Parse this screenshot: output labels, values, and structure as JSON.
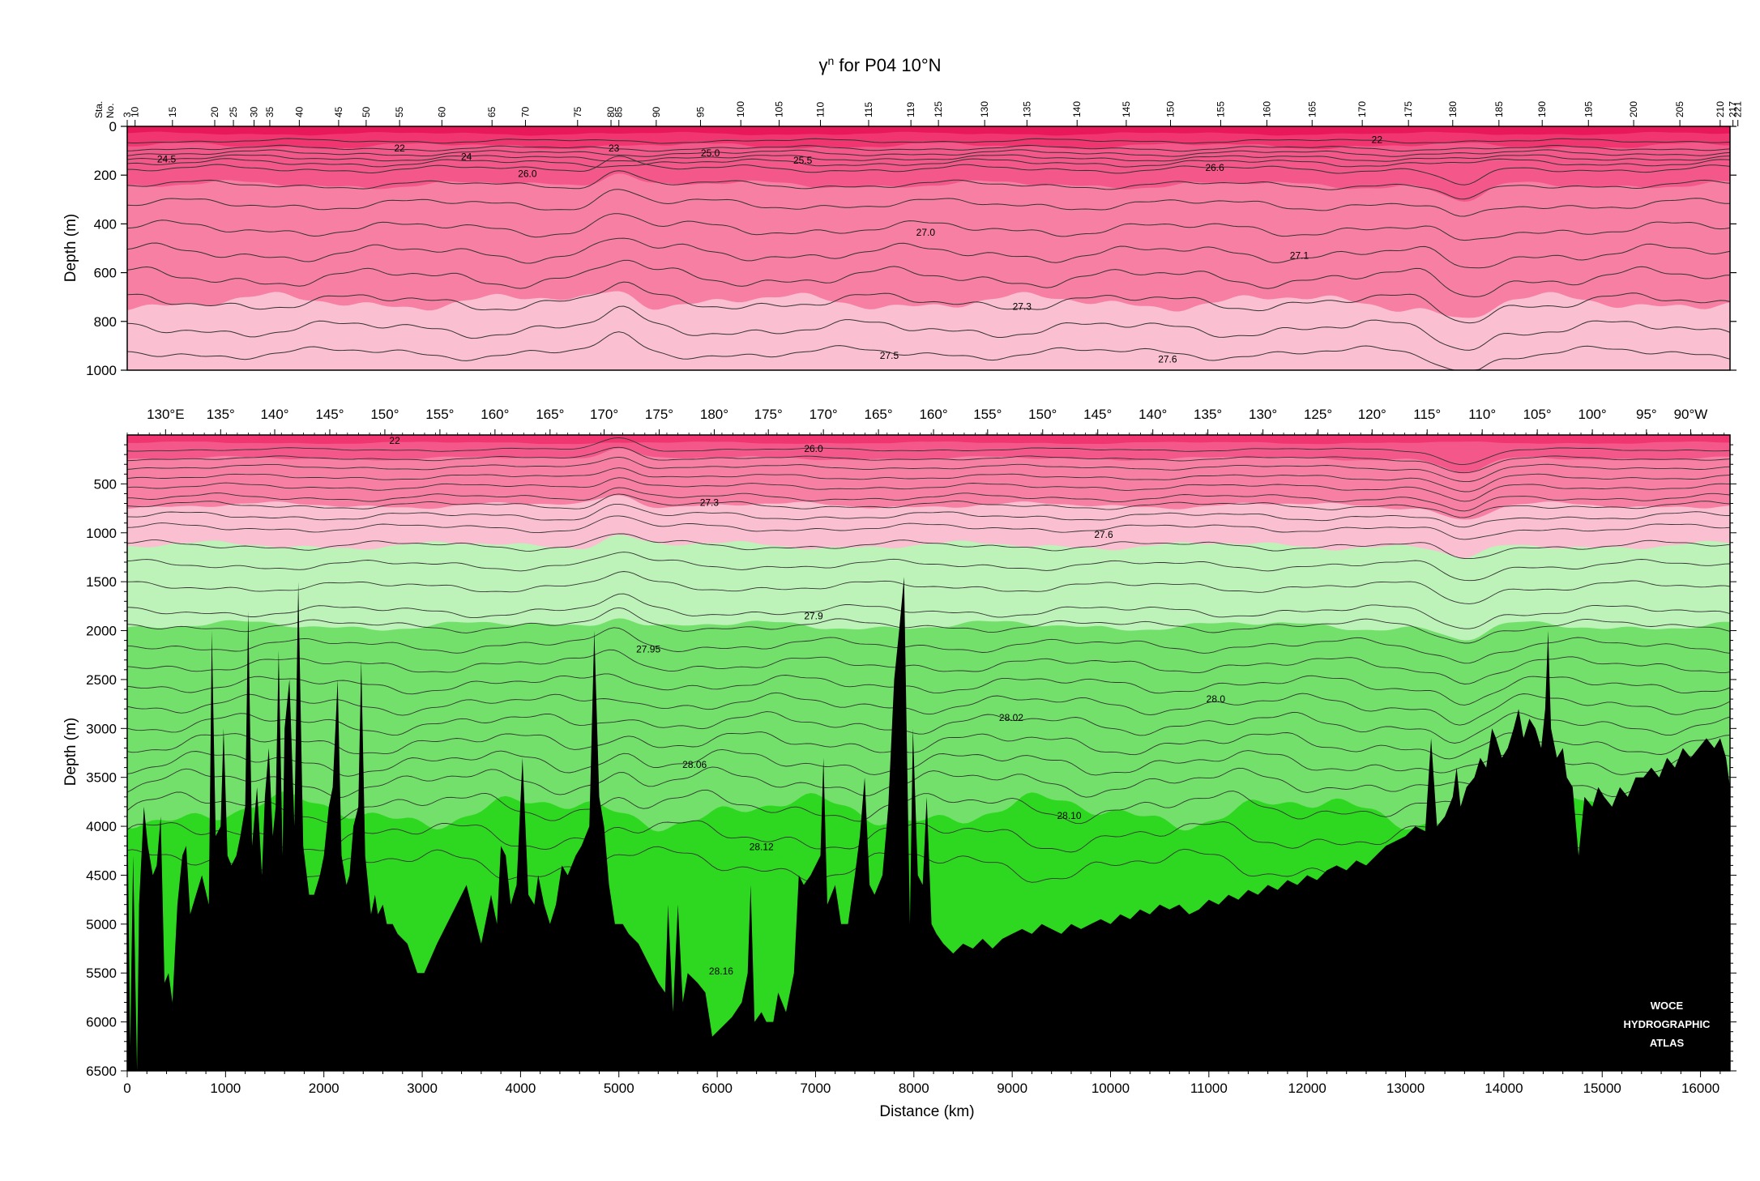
{
  "chart_data": [
    {
      "type": "contour-section",
      "title": "γn for P04 10°N",
      "title_main": "γ",
      "title_sup": "n",
      "title_rest": " for P04 10°N",
      "ylabel": "Depth (m)",
      "ylim": [
        0,
        1000
      ],
      "yticks": [
        0,
        200,
        400,
        600,
        800,
        1000
      ],
      "xlim": [
        0,
        16300
      ],
      "station_axis_label_top": "Sta.",
      "station_axis_label_bottom": "No.",
      "station_labels": [
        "3",
        "10",
        "15",
        "20",
        "25",
        "30",
        "35",
        "40",
        "45",
        "50",
        "55",
        "60",
        "65",
        "70",
        "75",
        "80",
        "85",
        "90",
        "95",
        "100",
        "105",
        "110",
        "115",
        "119",
        "125",
        "130",
        "135",
        "140",
        "145",
        "150",
        "155",
        "160",
        "165",
        "170",
        "175",
        "180",
        "185",
        "190",
        "195",
        "200",
        "205",
        "210",
        "217",
        "221"
      ],
      "station_km": [
        0,
        80,
        460,
        890,
        1080,
        1290,
        1450,
        1750,
        2150,
        2430,
        2770,
        3200,
        3710,
        4050,
        4580,
        4920,
        5000,
        5380,
        5830,
        6240,
        6630,
        7050,
        7540,
        7970,
        8250,
        8720,
        9150,
        9660,
        10160,
        10610,
        11120,
        11590,
        12050,
        12560,
        13030,
        13480,
        13950,
        14390,
        14860,
        15320,
        15790,
        16200,
        16330,
        16380
      ],
      "contour_labels": [
        {
          "text": "24.5",
          "km": 400,
          "depth": 135
        },
        {
          "text": "22",
          "km": 2770,
          "depth": 90
        },
        {
          "text": "24",
          "km": 3450,
          "depth": 125
        },
        {
          "text": "23",
          "km": 4950,
          "depth": 90
        },
        {
          "text": "25.0",
          "km": 5930,
          "depth": 110
        },
        {
          "text": "25.5",
          "km": 6870,
          "depth": 140
        },
        {
          "text": "26.0",
          "km": 4070,
          "depth": 195
        },
        {
          "text": "26.6",
          "km": 11060,
          "depth": 170
        },
        {
          "text": "27.0",
          "km": 8120,
          "depth": 435
        },
        {
          "text": "27.1",
          "km": 11920,
          "depth": 530
        },
        {
          "text": "27.3",
          "km": 9100,
          "depth": 740
        },
        {
          "text": "27.5",
          "km": 7750,
          "depth": 940
        },
        {
          "text": "27.6",
          "km": 10580,
          "depth": 955
        },
        {
          "text": "22",
          "km": 12710,
          "depth": 55
        }
      ]
    },
    {
      "type": "contour-section",
      "ylabel": "Depth (m)",
      "xlabel": "Distance (km)",
      "ylim": [
        0,
        6500
      ],
      "yticks": [
        500,
        1000,
        1500,
        2000,
        2500,
        3000,
        3500,
        4000,
        4500,
        5000,
        5500,
        6000,
        6500
      ],
      "xlim": [
        0,
        16300
      ],
      "xticks": [
        0,
        1000,
        2000,
        3000,
        4000,
        5000,
        6000,
        7000,
        8000,
        9000,
        10000,
        11000,
        12000,
        13000,
        14000,
        15000,
        16000
      ],
      "longitude_labels": [
        "130°E",
        "135°",
        "140°",
        "145°",
        "150°",
        "155°",
        "160°",
        "165°",
        "170°",
        "175°",
        "180°",
        "175°",
        "170°",
        "165°",
        "160°",
        "155°",
        "150°",
        "145°",
        "140°",
        "135°",
        "130°",
        "125°",
        "120°",
        "115°",
        "110°",
        "105°",
        "100°",
        "95°",
        "90°W"
      ],
      "longitude_km": [
        390,
        950,
        1500,
        2060,
        2620,
        3180,
        3740,
        4300,
        4850,
        5410,
        5970,
        6520,
        7080,
        7640,
        8200,
        8750,
        9310,
        9870,
        10430,
        10990,
        11550,
        12110,
        12660,
        13220,
        13780,
        14340,
        14900,
        15450,
        15900
      ],
      "contour_labels": [
        {
          "text": "22",
          "km": 2720,
          "depth": 60
        },
        {
          "text": "26.0",
          "km": 6980,
          "depth": 140
        },
        {
          "text": "27.3",
          "km": 5920,
          "depth": 690
        },
        {
          "text": "27.6",
          "km": 9930,
          "depth": 1020
        },
        {
          "text": "27.9",
          "km": 6980,
          "depth": 1850
        },
        {
          "text": "27.95",
          "km": 5300,
          "depth": 2190
        },
        {
          "text": "28.0",
          "km": 11070,
          "depth": 2700
        },
        {
          "text": "28.02",
          "km": 8990,
          "depth": 2890
        },
        {
          "text": "28.06",
          "km": 5770,
          "depth": 3370
        },
        {
          "text": "28.10",
          "km": 9580,
          "depth": 3890
        },
        {
          "text": "28.12",
          "km": 6450,
          "depth": 4210
        },
        {
          "text": "28.16",
          "km": 6040,
          "depth": 5480
        }
      ],
      "bottom_profile": [
        [
          0,
          3600
        ],
        [
          30,
          6250
        ],
        [
          60,
          4300
        ],
        [
          100,
          6500
        ],
        [
          120,
          4800
        ],
        [
          170,
          3800
        ],
        [
          210,
          4200
        ],
        [
          260,
          4500
        ],
        [
          300,
          4400
        ],
        [
          340,
          3900
        ],
        [
          380,
          5600
        ],
        [
          420,
          5500
        ],
        [
          460,
          5800
        ],
        [
          510,
          4800
        ],
        [
          560,
          4300
        ],
        [
          600,
          4200
        ],
        [
          640,
          4900
        ],
        [
          700,
          4700
        ],
        [
          760,
          4500
        ],
        [
          830,
          4800
        ],
        [
          860,
          2000
        ],
        [
          900,
          4100
        ],
        [
          950,
          4000
        ],
        [
          980,
          3000
        ],
        [
          1020,
          4300
        ],
        [
          1060,
          4400
        ],
        [
          1110,
          4300
        ],
        [
          1150,
          4100
        ],
        [
          1200,
          3800
        ],
        [
          1230,
          1800
        ],
        [
          1270,
          4200
        ],
        [
          1320,
          3600
        ],
        [
          1370,
          4500
        ],
        [
          1400,
          3700
        ],
        [
          1440,
          3200
        ],
        [
          1480,
          4100
        ],
        [
          1510,
          3800
        ],
        [
          1540,
          2200
        ],
        [
          1580,
          4300
        ],
        [
          1600,
          3000
        ],
        [
          1650,
          2500
        ],
        [
          1700,
          4000
        ],
        [
          1740,
          1500
        ],
        [
          1790,
          4200
        ],
        [
          1850,
          4700
        ],
        [
          1900,
          4700
        ],
        [
          1960,
          4500
        ],
        [
          2000,
          4300
        ],
        [
          2050,
          3800
        ],
        [
          2090,
          3600
        ],
        [
          2140,
          2500
        ],
        [
          2180,
          4300
        ],
        [
          2230,
          4600
        ],
        [
          2260,
          4500
        ],
        [
          2300,
          4000
        ],
        [
          2350,
          3800
        ],
        [
          2380,
          2300
        ],
        [
          2420,
          4300
        ],
        [
          2480,
          4900
        ],
        [
          2520,
          4700
        ],
        [
          2550,
          4900
        ],
        [
          2600,
          4800
        ],
        [
          2640,
          5000
        ],
        [
          2700,
          5000
        ],
        [
          2750,
          5100
        ],
        [
          2850,
          5200
        ],
        [
          2950,
          5500
        ],
        [
          3020,
          5500
        ],
        [
          3150,
          5200
        ],
        [
          3300,
          4900
        ],
        [
          3450,
          4600
        ],
        [
          3600,
          5200
        ],
        [
          3700,
          4700
        ],
        [
          3760,
          5000
        ],
        [
          3800,
          4200
        ],
        [
          3850,
          4300
        ],
        [
          3900,
          4800
        ],
        [
          3960,
          4600
        ],
        [
          4020,
          3300
        ],
        [
          4080,
          4700
        ],
        [
          4140,
          4800
        ],
        [
          4180,
          4500
        ],
        [
          4240,
          4800
        ],
        [
          4300,
          5000
        ],
        [
          4360,
          4800
        ],
        [
          4420,
          4400
        ],
        [
          4480,
          4500
        ],
        [
          4560,
          4300
        ],
        [
          4620,
          4200
        ],
        [
          4700,
          4000
        ],
        [
          4750,
          2000
        ],
        [
          4800,
          3700
        ],
        [
          4850,
          4000
        ],
        [
          4900,
          4600
        ],
        [
          4960,
          5000
        ],
        [
          5040,
          5000
        ],
        [
          5100,
          5100
        ],
        [
          5200,
          5200
        ],
        [
          5300,
          5400
        ],
        [
          5400,
          5600
        ],
        [
          5470,
          5700
        ],
        [
          5500,
          4800
        ],
        [
          5550,
          5900
        ],
        [
          5600,
          4800
        ],
        [
          5650,
          5800
        ],
        [
          5700,
          5500
        ],
        [
          5800,
          5600
        ],
        [
          5880,
          5700
        ],
        [
          5950,
          6150
        ],
        [
          6050,
          6050
        ],
        [
          6150,
          5950
        ],
        [
          6250,
          5800
        ],
        [
          6310,
          5500
        ],
        [
          6340,
          4600
        ],
        [
          6380,
          6000
        ],
        [
          6450,
          5900
        ],
        [
          6500,
          6000
        ],
        [
          6570,
          6000
        ],
        [
          6620,
          5700
        ],
        [
          6700,
          5900
        ],
        [
          6780,
          5500
        ],
        [
          6830,
          4500
        ],
        [
          6880,
          4600
        ],
        [
          6950,
          4500
        ],
        [
          7050,
          4300
        ],
        [
          7080,
          3300
        ],
        [
          7120,
          4800
        ],
        [
          7200,
          4600
        ],
        [
          7260,
          5000
        ],
        [
          7330,
          5000
        ],
        [
          7400,
          4500
        ],
        [
          7450,
          4100
        ],
        [
          7500,
          3500
        ],
        [
          7550,
          4600
        ],
        [
          7600,
          4700
        ],
        [
          7680,
          4500
        ],
        [
          7740,
          3800
        ],
        [
          7800,
          2500
        ],
        [
          7850,
          2000
        ],
        [
          7900,
          1450
        ],
        [
          7960,
          5000
        ],
        [
          7990,
          3000
        ],
        [
          8040,
          4500
        ],
        [
          8090,
          4600
        ],
        [
          8130,
          3700
        ],
        [
          8180,
          5000
        ],
        [
          8230,
          5100
        ],
        [
          8300,
          5200
        ],
        [
          8400,
          5300
        ],
        [
          8500,
          5200
        ],
        [
          8600,
          5250
        ],
        [
          8700,
          5150
        ],
        [
          8800,
          5250
        ],
        [
          8900,
          5150
        ],
        [
          9000,
          5100
        ],
        [
          9100,
          5050
        ],
        [
          9200,
          5100
        ],
        [
          9300,
          5000
        ],
        [
          9400,
          5050
        ],
        [
          9500,
          5100
        ],
        [
          9600,
          5000
        ],
        [
          9700,
          5050
        ],
        [
          9800,
          5000
        ],
        [
          9900,
          4950
        ],
        [
          10000,
          5000
        ],
        [
          10100,
          4900
        ],
        [
          10200,
          4950
        ],
        [
          10300,
          4850
        ],
        [
          10400,
          4900
        ],
        [
          10500,
          4800
        ],
        [
          10600,
          4850
        ],
        [
          10700,
          4800
        ],
        [
          10800,
          4900
        ],
        [
          10900,
          4850
        ],
        [
          11000,
          4750
        ],
        [
          11100,
          4800
        ],
        [
          11200,
          4700
        ],
        [
          11300,
          4750
        ],
        [
          11400,
          4650
        ],
        [
          11500,
          4700
        ],
        [
          11600,
          4600
        ],
        [
          11700,
          4650
        ],
        [
          11800,
          4550
        ],
        [
          11900,
          4600
        ],
        [
          12000,
          4500
        ],
        [
          12100,
          4550
        ],
        [
          12200,
          4450
        ],
        [
          12300,
          4400
        ],
        [
          12400,
          4450
        ],
        [
          12500,
          4350
        ],
        [
          12600,
          4400
        ],
        [
          12700,
          4300
        ],
        [
          12800,
          4200
        ],
        [
          12900,
          4150
        ],
        [
          13000,
          4100
        ],
        [
          13100,
          4000
        ],
        [
          13200,
          4050
        ],
        [
          13260,
          3100
        ],
        [
          13320,
          4000
        ],
        [
          13400,
          3900
        ],
        [
          13480,
          3700
        ],
        [
          13520,
          3400
        ],
        [
          13560,
          3800
        ],
        [
          13620,
          3600
        ],
        [
          13700,
          3500
        ],
        [
          13760,
          3300
        ],
        [
          13820,
          3400
        ],
        [
          13880,
          3000
        ],
        [
          13920,
          3100
        ],
        [
          13980,
          3300
        ],
        [
          14040,
          3200
        ],
        [
          14100,
          3000
        ],
        [
          14150,
          2800
        ],
        [
          14200,
          3100
        ],
        [
          14260,
          2900
        ],
        [
          14320,
          3000
        ],
        [
          14380,
          3200
        ],
        [
          14420,
          2800
        ],
        [
          14450,
          2000
        ],
        [
          14480,
          3000
        ],
        [
          14540,
          3300
        ],
        [
          14600,
          3200
        ],
        [
          14640,
          3500
        ],
        [
          14700,
          3600
        ],
        [
          14760,
          4300
        ],
        [
          14820,
          3700
        ],
        [
          14900,
          3800
        ],
        [
          14960,
          3600
        ],
        [
          15020,
          3700
        ],
        [
          15100,
          3800
        ],
        [
          15180,
          3600
        ],
        [
          15260,
          3700
        ],
        [
          15340,
          3500
        ],
        [
          15420,
          3500
        ],
        [
          15500,
          3400
        ],
        [
          15580,
          3500
        ],
        [
          15660,
          3300
        ],
        [
          15740,
          3400
        ],
        [
          15820,
          3200
        ],
        [
          15900,
          3300
        ],
        [
          15980,
          3200
        ],
        [
          16060,
          3100
        ],
        [
          16140,
          3200
        ],
        [
          16200,
          3100
        ],
        [
          16260,
          3300
        ],
        [
          16300,
          3600
        ]
      ],
      "fill_colors": {
        "band_top": "#e8185a",
        "band_upper": "#f03570",
        "band_mid": "#f4588a",
        "band_low": "#f87fa4",
        "band_lowest": "#fbbfd2",
        "green_light": "#bdf2b8",
        "green_mid": "#72e06a",
        "green_deep": "#2fd820",
        "bottom": "#000000",
        "contour": "#333333"
      },
      "watermark": [
        "WOCE",
        "HYDROGRAPHIC",
        "ATLAS"
      ]
    }
  ]
}
